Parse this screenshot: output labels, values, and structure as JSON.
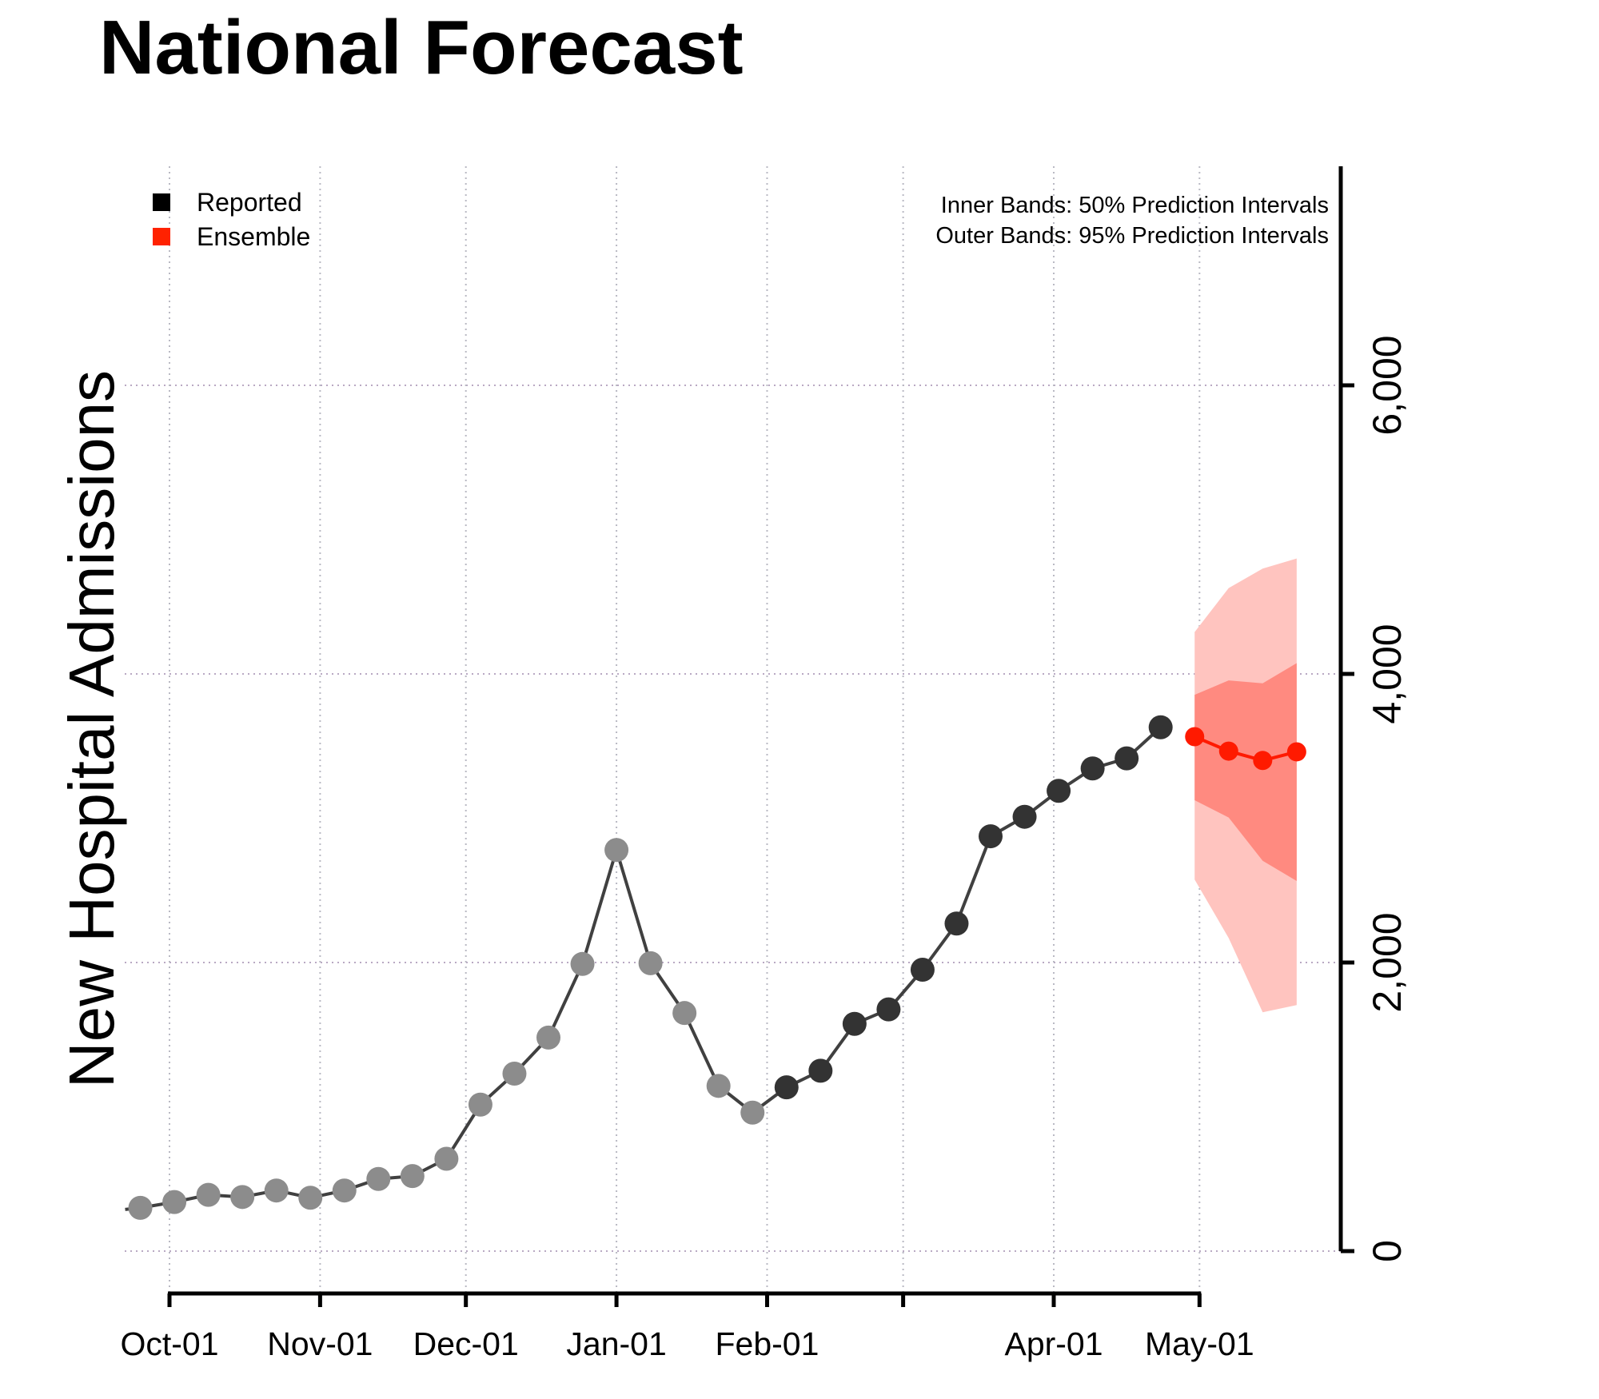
{
  "chart_data": {
    "type": "line",
    "title": "National Forecast",
    "ylabel": "New Hospital Admissions",
    "xlabel": "",
    "ylim": [
      0,
      7500
    ],
    "yticks": [
      0,
      2000,
      4000,
      6000
    ],
    "ytick_labels": [
      "0",
      "2,000",
      "4,000",
      "6,000"
    ],
    "xticks": [
      "2022-10-01",
      "2022-11-01",
      "2022-12-01",
      "2023-01-01",
      "2023-02-01",
      "2023-03-01",
      "2023-04-01",
      "2023-05-01"
    ],
    "xtick_labels": [
      "Oct-01",
      "Nov-01",
      "Dec-01",
      "Jan-01",
      "Feb-01",
      "",
      "Apr-01",
      "May-01"
    ],
    "grid": true,
    "legend": {
      "placement": "top-left",
      "entries": [
        {
          "label": "Reported",
          "color": "#000000"
        },
        {
          "label": "Ensemble",
          "color": "#ff2200"
        }
      ]
    },
    "notes": [
      "Inner Bands: 50% Prediction Intervals",
      "Outer Bands: 95% Prediction Intervals"
    ],
    "colors": {
      "reported_old": "#8c8c8c",
      "reported_recent": "#333333",
      "line": "#404040",
      "ensemble": "#ff1a00",
      "band50": "#ff8a80",
      "band95": "#ffc4bf"
    },
    "series": [
      {
        "name": "Reported",
        "x": [
          "2022-09-25",
          "2022-10-02",
          "2022-10-09",
          "2022-10-16",
          "2022-10-23",
          "2022-10-30",
          "2022-11-06",
          "2022-11-13",
          "2022-11-20",
          "2022-11-27",
          "2022-12-04",
          "2022-12-11",
          "2022-12-18",
          "2022-12-25",
          "2023-01-01",
          "2023-01-08",
          "2023-01-15",
          "2023-01-22",
          "2023-01-29",
          "2023-02-05",
          "2023-02-12",
          "2023-02-19",
          "2023-02-26",
          "2023-03-05",
          "2023-03-12",
          "2023-03-19",
          "2023-03-26",
          "2023-04-02",
          "2023-04-09",
          "2023-04-16",
          "2023-04-23"
        ],
        "values": [
          300,
          340,
          390,
          375,
          420,
          370,
          420,
          500,
          520,
          640,
          1015,
          1230,
          1480,
          1990,
          2780,
          1995,
          1650,
          1145,
          960,
          1135,
          1250,
          1575,
          1675,
          1950,
          2270,
          2875,
          3010,
          3190,
          3345,
          3415,
          3630
        ]
      },
      {
        "name": "Ensemble",
        "x": [
          "2023-04-30",
          "2023-05-07",
          "2023-05-14",
          "2023-05-21"
        ],
        "values": [
          3565,
          3465,
          3400,
          3460
        ],
        "pi50_lower": [
          3125,
          3005,
          2705,
          2565
        ],
        "pi50_upper": [
          3855,
          3955,
          3935,
          4075
        ],
        "pi95_lower": [
          2575,
          2170,
          1655,
          1705
        ],
        "pi95_upper": [
          4290,
          4595,
          4730,
          4800
        ]
      }
    ]
  }
}
